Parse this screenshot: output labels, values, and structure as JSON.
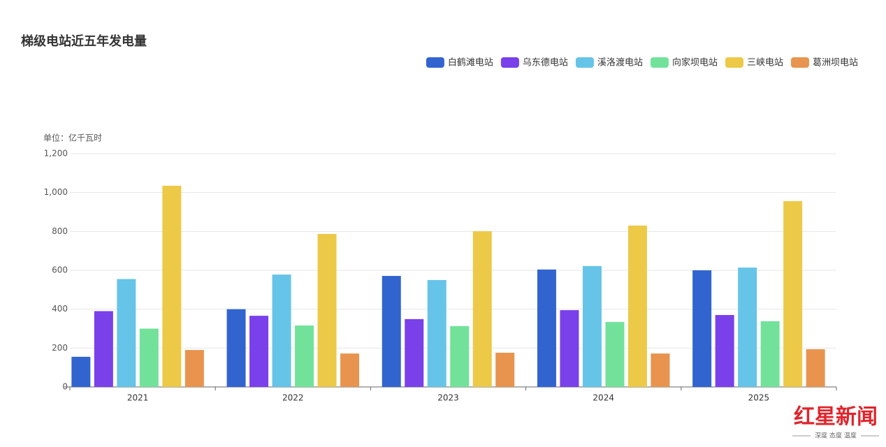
{
  "chart_data": {
    "type": "bar",
    "title": "梯级电站近五年发电量",
    "y_label": "单位：亿千瓦时",
    "categories": [
      "2021",
      "2022",
      "2023",
      "2024",
      "2025"
    ],
    "series": [
      {
        "name": "白鹤滩电站",
        "color": "#3264d0",
        "values": [
          155,
          400,
          571,
          604,
          600
        ]
      },
      {
        "name": "乌东德电站",
        "color": "#7a40ea",
        "values": [
          390,
          366,
          349,
          395,
          370
        ]
      },
      {
        "name": "溪洛渡电站",
        "color": "#66c4e8",
        "values": [
          555,
          578,
          550,
          622,
          614
        ]
      },
      {
        "name": "向家坝电站",
        "color": "#72e29a",
        "values": [
          300,
          316,
          313,
          334,
          338
        ]
      },
      {
        "name": "三峡电站",
        "color": "#edc948",
        "values": [
          1035,
          787,
          801,
          830,
          956
        ]
      },
      {
        "name": "葛洲坝电站",
        "color": "#e8944e",
        "values": [
          190,
          172,
          176,
          172,
          194
        ]
      }
    ],
    "ylim": [
      0,
      1200
    ],
    "yticks": [
      0,
      200,
      400,
      600,
      800,
      {
        "value": 1000,
        "label": "1,000"
      },
      {
        "value": 1200,
        "label": "1,200"
      }
    ],
    "grid": true
  },
  "watermark": {
    "brand": "红星新闻",
    "slogan": "深度 态度 温度"
  }
}
